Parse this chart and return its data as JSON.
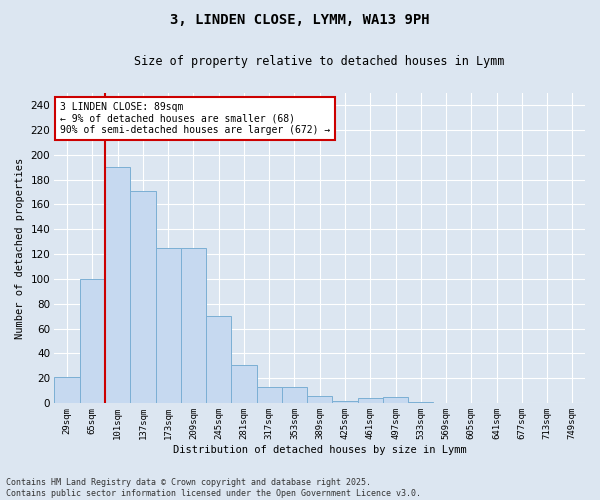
{
  "title_line1": "3, LINDEN CLOSE, LYMM, WA13 9PH",
  "title_line2": "Size of property relative to detached houses in Lymm",
  "xlabel": "Distribution of detached houses by size in Lymm",
  "ylabel": "Number of detached properties",
  "categories": [
    "29sqm",
    "65sqm",
    "101sqm",
    "137sqm",
    "173sqm",
    "209sqm",
    "245sqm",
    "281sqm",
    "317sqm",
    "353sqm",
    "389sqm",
    "425sqm",
    "461sqm",
    "497sqm",
    "533sqm",
    "569sqm",
    "605sqm",
    "641sqm",
    "677sqm",
    "713sqm",
    "749sqm"
  ],
  "values": [
    21,
    100,
    190,
    171,
    125,
    125,
    70,
    31,
    13,
    13,
    6,
    2,
    4,
    5,
    1,
    0,
    0,
    0,
    0,
    0,
    0
  ],
  "bar_color": "#c6d9f0",
  "bar_edge_color": "#7bafd4",
  "background_color": "#dce6f1",
  "grid_color": "#ffffff",
  "vline_color": "#cc0000",
  "annotation_text": "3 LINDEN CLOSE: 89sqm\n← 9% of detached houses are smaller (68)\n90% of semi-detached houses are larger (672) →",
  "annotation_box_color": "#ffffff",
  "annotation_box_edge": "#cc0000",
  "ylim": [
    0,
    250
  ],
  "yticks": [
    0,
    20,
    40,
    60,
    80,
    100,
    120,
    140,
    160,
    180,
    200,
    220,
    240
  ],
  "footer_line1": "Contains HM Land Registry data © Crown copyright and database right 2025.",
  "footer_line2": "Contains public sector information licensed under the Open Government Licence v3.0."
}
